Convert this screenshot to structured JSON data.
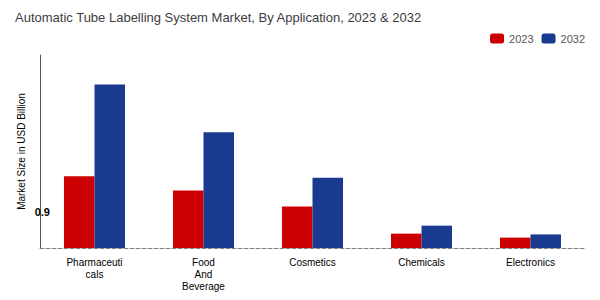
{
  "chart_data": {
    "type": "bar",
    "title": "Automatic Tube Labelling System Market, By Application, 2023 & 2032",
    "ylabel": "Market Size in USD Billion",
    "categories": [
      "Pharmaceuti\ncals",
      "Food\nAnd\nBeverage",
      "Cosmetics",
      "Chemicals",
      "Electronics"
    ],
    "series": [
      {
        "name": "2023",
        "color": "#cc0000",
        "values": [
          0.9,
          0.72,
          0.52,
          0.18,
          0.13
        ]
      },
      {
        "name": "2032",
        "color": "#1a3a8f",
        "values": [
          2.05,
          1.45,
          0.88,
          0.28,
          0.17
        ]
      }
    ],
    "annotation": "0.9",
    "ylim": [
      0,
      2.419
    ],
    "grid": false,
    "legend": "upper right",
    "tick_labels": "x"
  }
}
